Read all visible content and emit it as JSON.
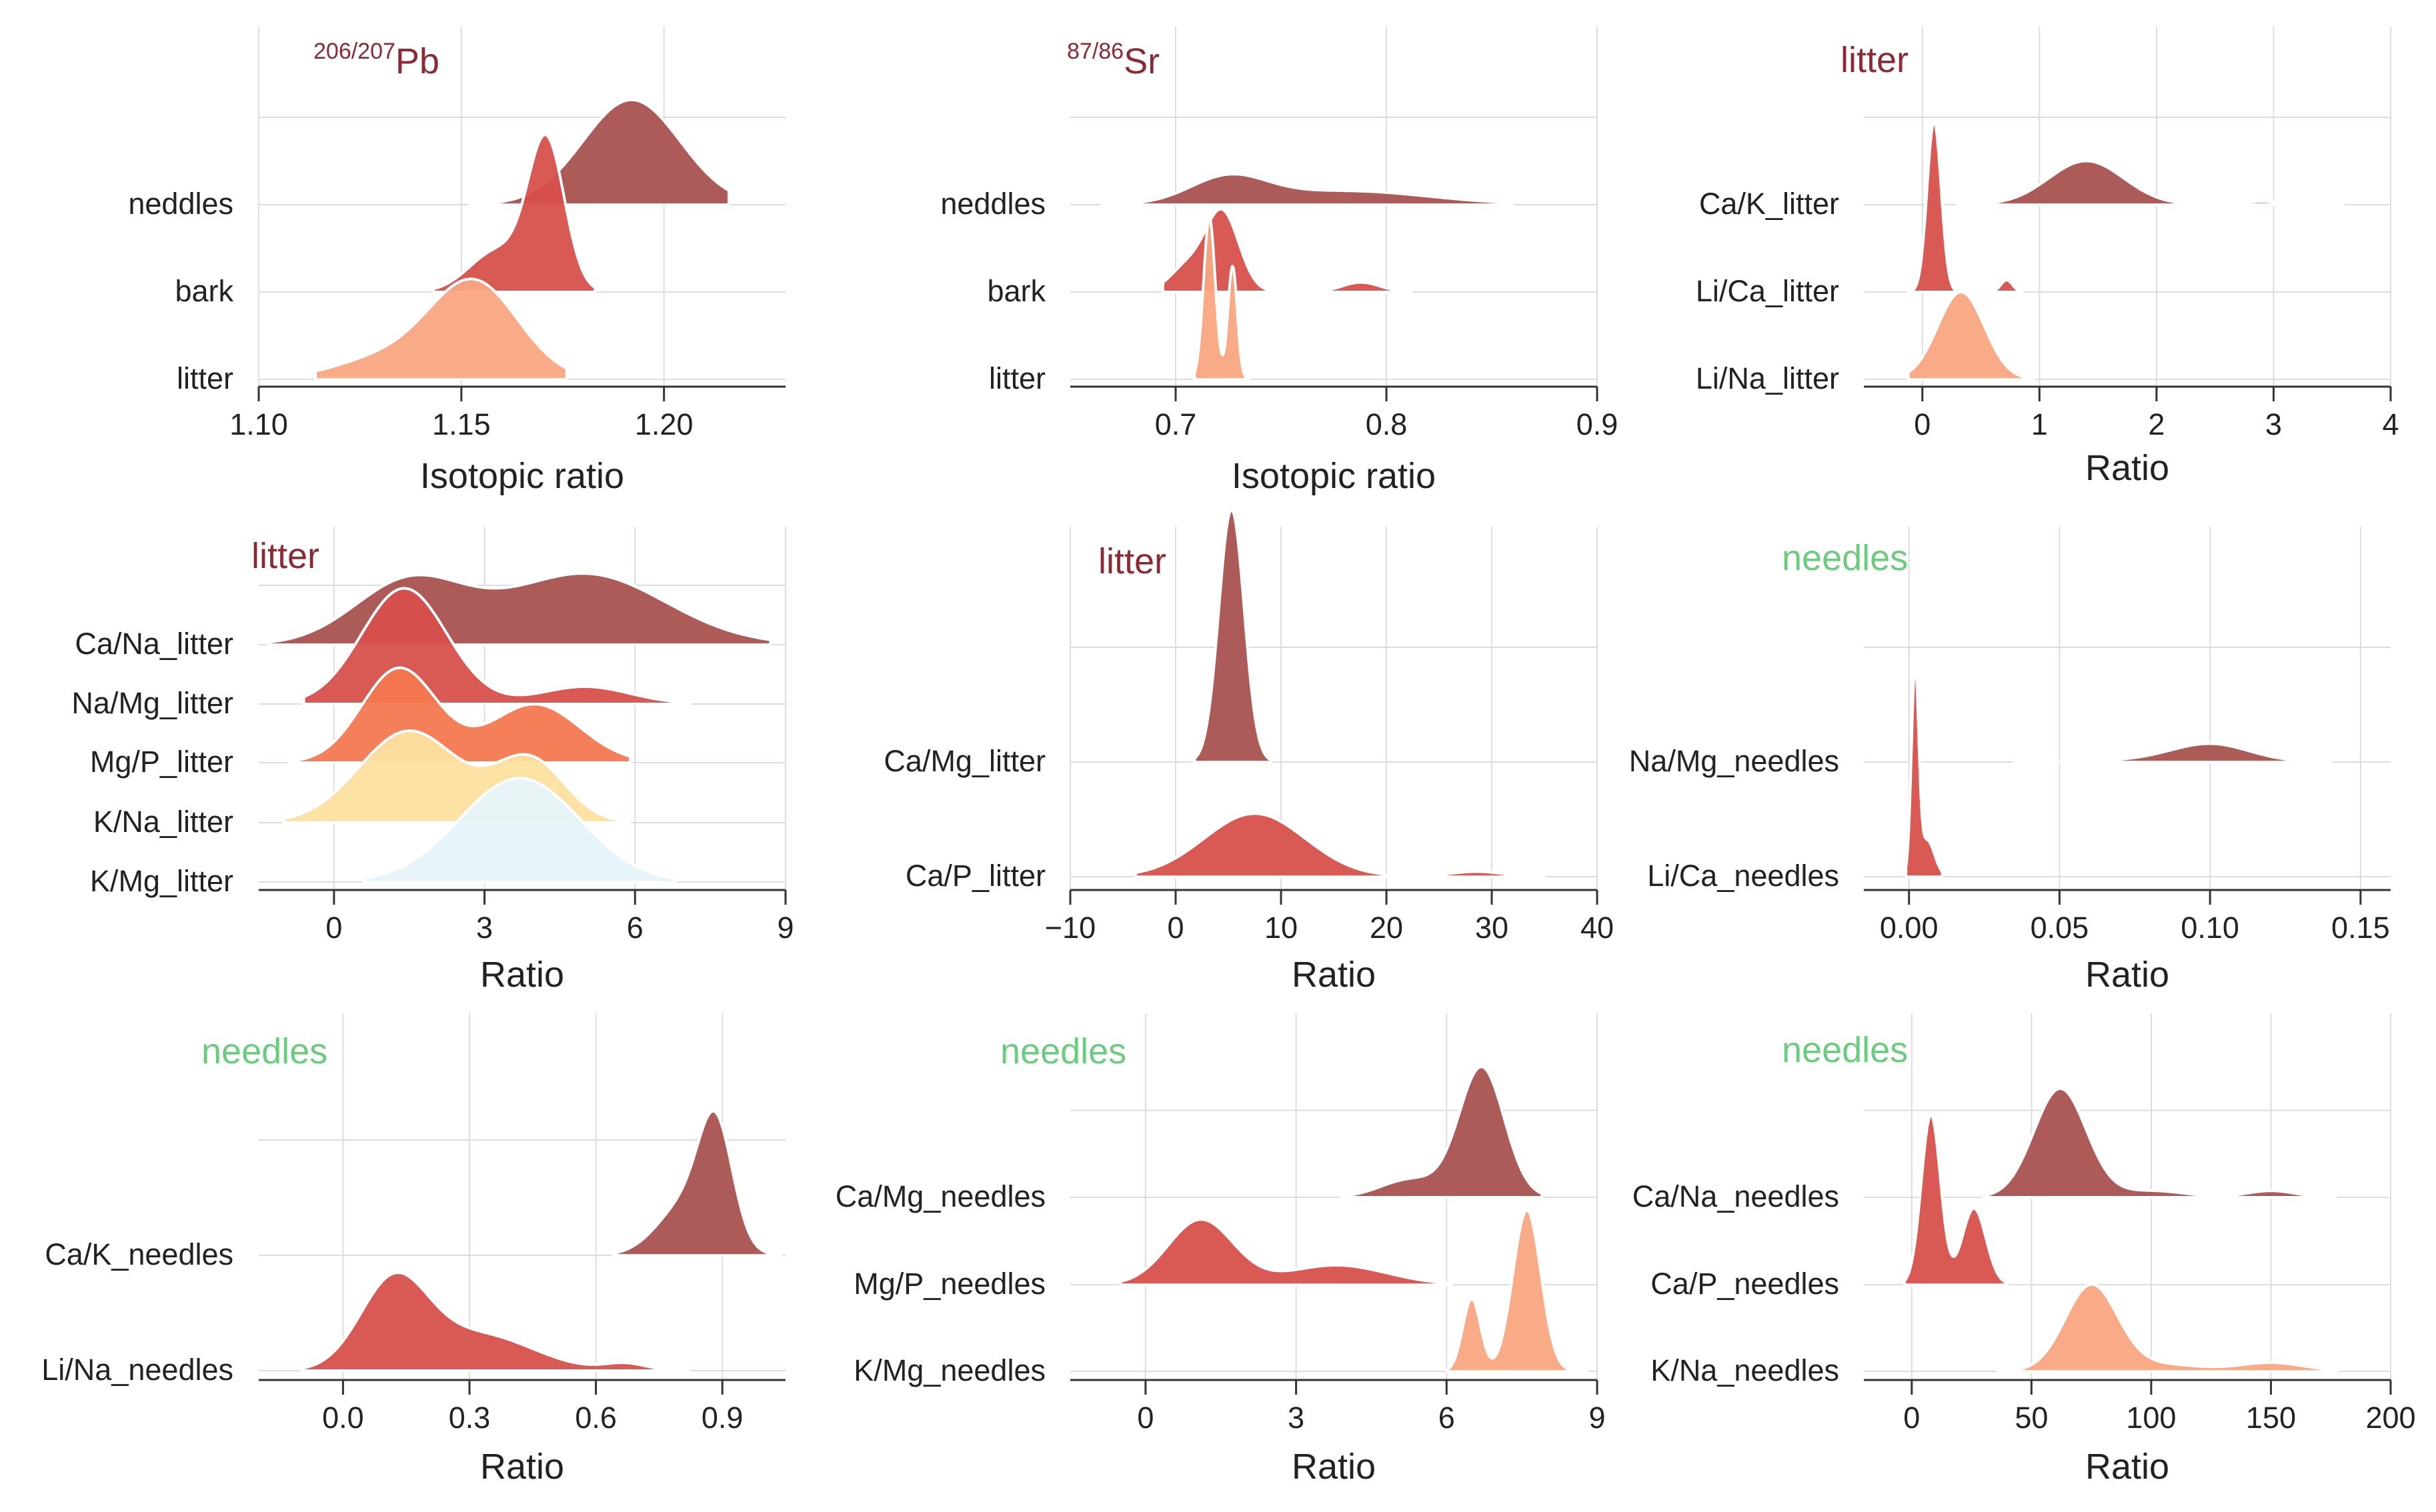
{
  "chart_data": [
    {
      "type": "ridgeline",
      "title": "Pb",
      "title_sup": "206/207",
      "title_color": "#8B2A35",
      "xlabel": "Isotopic ratio",
      "xlim": [
        1.1,
        1.23
      ],
      "xticks": [
        1.1,
        1.15,
        1.2
      ],
      "xtick_labels": [
        "1.10",
        "1.15",
        "1.20"
      ],
      "rows": [
        "neddles",
        "bark",
        "litter"
      ],
      "series": [
        {
          "name": "neddles",
          "color": "#A9524F",
          "peaks": [
            [
              1.192,
              0.012,
              1.0
            ]
          ],
          "range": [
            1.152,
            1.216
          ],
          "height": 1.2
        },
        {
          "name": "bark",
          "color": "#D7504C",
          "peaks": [
            [
              1.171,
              0.0045,
              1.0
            ],
            [
              1.159,
              0.007,
              0.28
            ]
          ],
          "range": [
            1.143,
            1.183
          ],
          "height": 1.8
        },
        {
          "name": "litter",
          "color": "#F9A782",
          "peaks": [
            [
              1.153,
              0.011,
              1.0
            ],
            [
              1.13,
              0.012,
              0.2
            ]
          ],
          "range": [
            1.114,
            1.176
          ],
          "height": 1.15
        }
      ]
    },
    {
      "type": "ridgeline",
      "title": "Sr",
      "title_sup": "87/86",
      "title_color": "#8B2A35",
      "xlabel": "Isotopic ratio",
      "xlim": [
        0.65,
        0.9
      ],
      "xticks": [
        0.7,
        0.8,
        0.9
      ],
      "xtick_labels": [
        "0.7",
        "0.8",
        "0.9"
      ],
      "rows": [
        "neddles",
        "bark",
        "litter"
      ],
      "series": [
        {
          "name": "neddles",
          "color": "#A9524F",
          "peaks": [
            [
              0.725,
              0.018,
              1.0
            ],
            [
              0.78,
              0.04,
              0.55
            ]
          ],
          "range": [
            0.665,
            0.86
          ],
          "height": 0.35
        },
        {
          "name": "bark",
          "color": "#D7504C",
          "peaks": [
            [
              0.722,
              0.008,
              1.0
            ],
            [
              0.705,
              0.008,
              0.3
            ],
            [
              0.788,
              0.009,
              0.12
            ]
          ],
          "range": [
            0.694,
            0.812
          ],
          "height": 0.95
        },
        {
          "name": "litter",
          "color": "#F9A782",
          "peaks": [
            [
              0.716,
              0.0028,
              1.0
            ],
            [
              0.727,
              0.0022,
              0.7
            ]
          ],
          "range": [
            0.709,
            0.735
          ],
          "height": 1.85
        }
      ]
    },
    {
      "type": "ridgeline",
      "title": "litter",
      "title_color": "#8B2A35",
      "xlabel": "Ratio",
      "xlim": [
        -0.5,
        4.0
      ],
      "xticks": [
        0,
        1,
        2,
        3,
        4
      ],
      "xtick_labels": [
        "0",
        "1",
        "2",
        "3",
        "4"
      ],
      "rows": [
        "Ca/K_litter",
        "Li/Ca_litter",
        "Li/Na_litter"
      ],
      "series": [
        {
          "name": "Ca/K_litter",
          "color": "#A9524F",
          "peaks": [
            [
              1.4,
              0.32,
              1.0
            ],
            [
              2.9,
              0.18,
              0.07
            ]
          ],
          "range": [
            0.3,
            3.6
          ],
          "height": 0.5
        },
        {
          "name": "Li/Ca_litter",
          "color": "#D7504C",
          "peaks": [
            [
              0.1,
              0.06,
              1.0
            ],
            [
              0.72,
              0.05,
              0.07
            ]
          ],
          "range": [
            -0.12,
            0.85
          ],
          "height": 1.95
        },
        {
          "name": "Li/Na_litter",
          "color": "#F9A782",
          "peaks": [
            [
              0.33,
              0.2,
              1.0
            ]
          ],
          "range": [
            -0.12,
            0.95
          ],
          "height": 1.0
        }
      ]
    },
    {
      "type": "ridgeline",
      "title": "litter",
      "title_color": "#8B2A35",
      "xlabel": "Ratio",
      "xlim": [
        -1.5,
        9.0
      ],
      "xticks": [
        0,
        3,
        6,
        9
      ],
      "xtick_labels": [
        "0",
        "3",
        "6",
        "9"
      ],
      "rows": [
        "Ca/Na_litter",
        "Na/Mg_litter",
        "Mg/P_litter",
        "K/Na_litter",
        "K/Mg_litter"
      ],
      "series": [
        {
          "name": "Ca/Na_litter",
          "color": "#A9524F",
          "peaks": [
            [
              1.5,
              1.1,
              0.88
            ],
            [
              5.0,
              1.6,
              1.0
            ]
          ],
          "range": [
            -1.3,
            8.7
          ],
          "height": 1.2
        },
        {
          "name": "Na/Mg_litter",
          "color": "#D7504C",
          "peaks": [
            [
              1.4,
              0.85,
              1.0
            ],
            [
              5.0,
              0.9,
              0.15
            ]
          ],
          "range": [
            -0.6,
            7.1
          ],
          "height": 1.95
        },
        {
          "name": "Mg/P_litter",
          "color": "#F4784F",
          "peaks": [
            [
              1.3,
              0.75,
              1.0
            ],
            [
              4.0,
              0.9,
              0.62
            ]
          ],
          "range": [
            -0.9,
            5.9
          ],
          "height": 1.6
        },
        {
          "name": "K/Na_litter",
          "color": "#FCE0A0",
          "peaks": [
            [
              1.5,
              1.0,
              1.0
            ],
            [
              3.9,
              0.7,
              0.68
            ]
          ],
          "range": [
            -1.0,
            5.9
          ],
          "height": 1.55
        },
        {
          "name": "K/Mg_litter",
          "color": "#E6F3F9",
          "peaks": [
            [
              3.7,
              1.2,
              1.0
            ]
          ],
          "range": [
            0.6,
            6.8
          ],
          "height": 1.75
        }
      ]
    },
    {
      "type": "ridgeline",
      "title": "litter",
      "title_color": "#8B2A35",
      "xlabel": "Ratio",
      "xlim": [
        -10,
        40
      ],
      "xticks": [
        -10,
        0,
        10,
        20,
        30,
        40
      ],
      "xtick_labels": [
        "−10",
        "0",
        "10",
        "20",
        "30",
        "40"
      ],
      "rows": [
        "Ca/Mg_litter",
        "Ca/P_litter"
      ],
      "series": [
        {
          "name": "Ca/Mg_litter",
          "color": "#A9524F",
          "peaks": [
            [
              5.3,
              1.2,
              1.0
            ]
          ],
          "range": [
            1.8,
            9.0
          ],
          "height": 2.2
        },
        {
          "name": "Ca/P_litter",
          "color": "#D7504C",
          "peaks": [
            [
              7.5,
              4.8,
              1.0
            ],
            [
              28.5,
              2.5,
              0.08
            ]
          ],
          "range": [
            -3.8,
            35.0
          ],
          "height": 0.55
        }
      ]
    },
    {
      "type": "ridgeline",
      "title": "needles",
      "title_color": "#6CCB7F",
      "xlabel": "Ratio",
      "xlim": [
        -0.015,
        0.16
      ],
      "xticks": [
        0.0,
        0.05,
        0.1,
        0.15
      ],
      "xtick_labels": [
        "0.00",
        "0.05",
        "0.10",
        "0.15"
      ],
      "rows": [
        "Na/Mg_needles",
        "Li/Ca_needles"
      ],
      "series": [
        {
          "name": "Na/Mg_needles",
          "color": "#A9524F",
          "peaks": [
            [
              0.1,
              0.013,
              1.0
            ],
            [
              0.075,
              0.012,
              0.08
            ]
          ],
          "range": [
            0.035,
            0.14
          ],
          "height": 0.16
        },
        {
          "name": "Li/Ca_needles",
          "color": "#D7504C",
          "peaks": [
            [
              0.002,
              0.0012,
              1.0
            ],
            [
              0.006,
              0.0025,
              0.18
            ]
          ],
          "range": [
            -0.001,
            0.011
          ],
          "height": 1.85
        }
      ]
    },
    {
      "type": "ridgeline",
      "title": "needles",
      "title_color": "#6CCB7F",
      "xlabel": "Ratio",
      "xlim": [
        -0.2,
        1.05
      ],
      "xticks": [
        0.0,
        0.3,
        0.6,
        0.9
      ],
      "xtick_labels": [
        "0.0",
        "0.3",
        "0.6",
        "0.9"
      ],
      "rows": [
        "Ca/K_needles",
        "Li/Na_needles"
      ],
      "series": [
        {
          "name": "Ca/K_needles",
          "color": "#A9524F",
          "peaks": [
            [
              0.885,
              0.04,
              1.0
            ],
            [
              0.82,
              0.07,
              0.5
            ]
          ],
          "range": [
            0.64,
            1.04
          ],
          "height": 1.25
        },
        {
          "name": "Li/Na_needles",
          "color": "#D7504C",
          "peaks": [
            [
              0.12,
              0.08,
              1.0
            ],
            [
              0.32,
              0.13,
              0.42
            ],
            [
              0.67,
              0.05,
              0.08
            ]
          ],
          "range": [
            -0.1,
            0.82
          ],
          "height": 0.85
        }
      ]
    },
    {
      "type": "ridgeline",
      "title": "needles",
      "title_color": "#6CCB7F",
      "xlabel": "Ratio",
      "xlim": [
        -1.5,
        9.0
      ],
      "xticks": [
        0,
        3,
        6,
        9
      ],
      "xtick_labels": [
        "0",
        "3",
        "6",
        "9"
      ],
      "rows": [
        "Ca/Mg_needles",
        "Mg/P_needles",
        "K/Mg_needles"
      ],
      "series": [
        {
          "name": "Ca/Mg_needles",
          "color": "#A9524F",
          "peaks": [
            [
              6.7,
              0.45,
              1.0
            ],
            [
              5.3,
              0.6,
              0.14
            ]
          ],
          "range": [
            3.9,
            7.9
          ],
          "height": 1.5
        },
        {
          "name": "Mg/P_needles",
          "color": "#D7504C",
          "peaks": [
            [
              1.1,
              0.65,
              1.0
            ],
            [
              3.8,
              1.0,
              0.3
            ]
          ],
          "range": [
            -0.5,
            6.1
          ],
          "height": 0.75
        },
        {
          "name": "K/Mg_needles",
          "color": "#F9A782",
          "peaks": [
            [
              7.6,
              0.28,
              1.0
            ],
            [
              6.5,
              0.18,
              0.45
            ]
          ],
          "range": [
            6.0,
            8.8
          ],
          "height": 1.85
        }
      ]
    },
    {
      "type": "ridgeline",
      "title": "needles",
      "title_color": "#6CCB7F",
      "xlabel": "Ratio",
      "xlim": [
        -20,
        200
      ],
      "xticks": [
        0,
        50,
        100,
        150,
        200
      ],
      "xtick_labels": [
        "0",
        "50",
        "100",
        "150",
        "200"
      ],
      "rows": [
        "Ca/Na_needles",
        "Ca/P_needles",
        "K/Na_needles"
      ],
      "series": [
        {
          "name": "Ca/Na_needles",
          "color": "#A9524F",
          "peaks": [
            [
              62,
              11,
              1.0
            ],
            [
              100,
              14,
              0.06
            ],
            [
              150,
              10,
              0.06
            ]
          ],
          "range": [
            30,
            177
          ],
          "height": 1.25
        },
        {
          "name": "Ca/P_needles",
          "color": "#D7504C",
          "peaks": [
            [
              8,
              4,
              1.0
            ],
            [
              26,
              5,
              0.45
            ]
          ],
          "range": [
            -3,
            40
          ],
          "height": 1.95
        },
        {
          "name": "K/Na_needles",
          "color": "#F9A782",
          "peaks": [
            [
              75,
              11,
              1.0
            ],
            [
              150,
              14,
              0.1
            ],
            [
              105,
              15,
              0.08
            ]
          ],
          "range": [
            36,
            178
          ],
          "height": 1.0
        }
      ]
    }
  ]
}
